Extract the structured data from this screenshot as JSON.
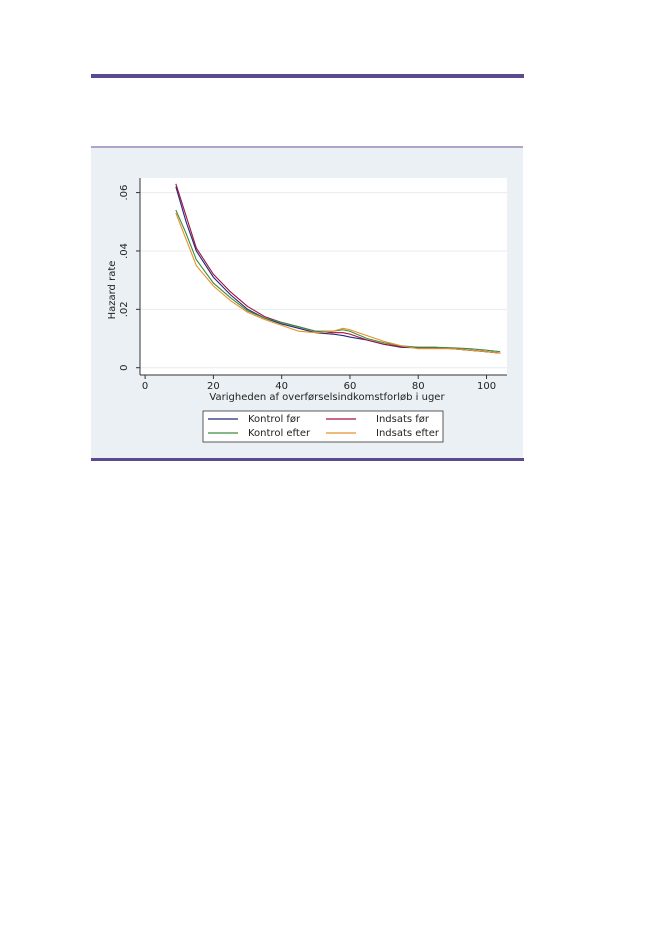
{
  "chart_data": {
    "type": "line",
    "x_label": "Varigheden af overførselsindkomstforløb i uger",
    "y_label": "Hazard rate",
    "x": [
      9,
      12,
      15,
      20,
      25,
      30,
      35,
      40,
      45,
      50,
      55,
      58,
      60,
      65,
      70,
      75,
      80,
      85,
      90,
      95,
      100,
      104
    ],
    "series": [
      {
        "name": "Kontrol før",
        "color": "#1f2a7a",
        "values": [
          0.062,
          0.05,
          0.04,
          0.031,
          0.025,
          0.02,
          0.017,
          0.015,
          0.0135,
          0.012,
          0.0115,
          0.011,
          0.0105,
          0.0095,
          0.008,
          0.007,
          0.0068,
          0.0068,
          0.0065,
          0.006,
          0.0055,
          0.005
        ]
      },
      {
        "name": "Indsats før",
        "color": "#a3123f",
        "values": [
          0.063,
          0.052,
          0.041,
          0.032,
          0.026,
          0.021,
          0.0175,
          0.0155,
          0.014,
          0.0125,
          0.012,
          0.012,
          0.0115,
          0.0095,
          0.008,
          0.0072,
          0.007,
          0.007,
          0.0065,
          0.006,
          0.0055,
          0.005
        ]
      },
      {
        "name": "Kontrol efter",
        "color": "#3d8c3d",
        "values": [
          0.054,
          0.046,
          0.037,
          0.029,
          0.024,
          0.0195,
          0.017,
          0.0155,
          0.014,
          0.0125,
          0.0125,
          0.013,
          0.0125,
          0.01,
          0.0085,
          0.0075,
          0.007,
          0.007,
          0.0068,
          0.0065,
          0.006,
          0.0055
        ]
      },
      {
        "name": "Indsats efter",
        "color": "#e8902a",
        "values": [
          0.053,
          0.044,
          0.035,
          0.028,
          0.023,
          0.019,
          0.0165,
          0.0145,
          0.0125,
          0.012,
          0.0125,
          0.0135,
          0.013,
          0.011,
          0.009,
          0.0075,
          0.0065,
          0.0065,
          0.0065,
          0.006,
          0.0055,
          0.005
        ]
      }
    ],
    "xlim": [
      -1.5,
      106
    ],
    "ylim": [
      -0.0025,
      0.065
    ],
    "xticks": [
      0,
      20,
      40,
      60,
      80,
      100
    ],
    "yticks": [
      0,
      {
        "value": 0.02,
        "label": ".02"
      },
      {
        "value": 0.04,
        "label": ".04"
      },
      {
        "value": 0.06,
        "label": ".06"
      }
    ],
    "grid": true
  }
}
